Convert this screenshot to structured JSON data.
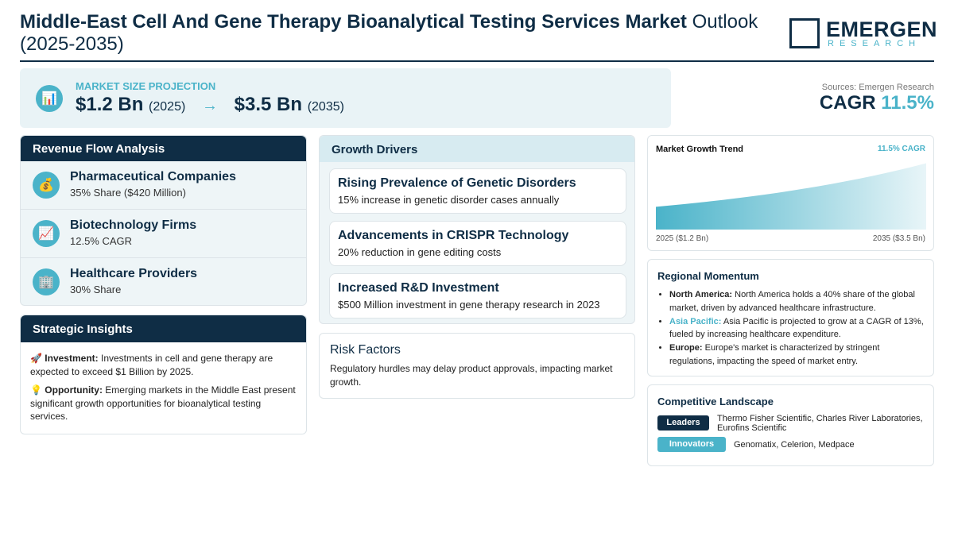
{
  "header": {
    "title_bold": "Middle-East Cell And Gene Therapy Bioanalytical Testing Services Market",
    "title_rest": " Outlook (2025-2035)",
    "logo_main": "EMERGEN",
    "logo_sub": "RESEARCH"
  },
  "projection": {
    "icon": "bar-chart-icon",
    "label": "MARKET SIZE PROJECTION",
    "start_value": "$1.2 Bn",
    "start_year": "(2025)",
    "arrow": "→",
    "end_value": "$3.5 Bn",
    "end_year": "(2035)"
  },
  "summary": {
    "source": "Sources: Emergen Research",
    "cagr_label": "CAGR",
    "cagr_value": "11.5%"
  },
  "revenue": {
    "title": "Revenue Flow Analysis",
    "items": [
      {
        "icon": "money-bag-icon",
        "glyph": "💰",
        "name": "Pharmaceutical Companies",
        "detail": "35% Share ($420 Million)"
      },
      {
        "icon": "trend-chart-icon",
        "glyph": "📈",
        "name": "Biotechnology Firms",
        "detail": "12.5% CAGR"
      },
      {
        "icon": "hospital-icon",
        "glyph": "🏢",
        "name": "Healthcare Providers",
        "detail": "30% Share"
      }
    ]
  },
  "strategic": {
    "title": "Strategic Insights",
    "items": [
      {
        "glyph": "🚀",
        "label": "Investment:",
        "text": " Investments in cell and gene therapy are expected to exceed $1 Billion by 2025."
      },
      {
        "glyph": "💡",
        "label": "Opportunity:",
        "text": " Emerging markets in the Middle East present significant growth opportunities for bioanalytical testing services."
      }
    ]
  },
  "growth": {
    "title": "Growth Drivers",
    "items": [
      {
        "title": "Rising Prevalence of Genetic Disorders",
        "detail": "15% increase in genetic disorder cases annually"
      },
      {
        "title": "Advancements in CRISPR Technology",
        "detail": "20% reduction in gene editing costs"
      },
      {
        "title": "Increased R&D Investment",
        "detail": "$500 Million investment in gene therapy research in 2023"
      }
    ]
  },
  "risk": {
    "title": "Risk Factors",
    "text": "Regulatory hurdles may delay product approvals, impacting market growth."
  },
  "trend": {
    "title": "Market Growth Trend",
    "cagr": "11.5% CAGR",
    "start_label": "2025 ($1.2 Bn)",
    "end_label": "2035 ($3.5 Bn)",
    "colors": {
      "fill_start": "#4ab3c9",
      "fill_end": "#e8f5f8"
    }
  },
  "chart_data": {
    "type": "area",
    "x": [
      2025,
      2035
    ],
    "values": [
      1.2,
      3.5
    ],
    "title": "Market Growth Trend",
    "xlabel": "",
    "ylabel": ""
  },
  "regional": {
    "title": "Regional Momentum",
    "items": [
      {
        "region": "North America:",
        "text": " North America holds a 40% share of the global market, driven by advanced healthcare infrastructure.",
        "accent": false
      },
      {
        "region": "Asia Pacific:",
        "text": " Asia Pacific is projected to grow at a CAGR of 13%, fueled by increasing healthcare expenditure.",
        "accent": true
      },
      {
        "region": "Europe:",
        "text": " Europe's market is characterized by stringent regulations, impacting the speed of market entry.",
        "accent": false
      }
    ]
  },
  "competitive": {
    "title": "Competitive Landscape",
    "leaders_label": "Leaders",
    "leaders": "Thermo Fisher Scientific, Charles River Laboratories, Eurofins Scientific",
    "innovators_label": "Innovators",
    "innovators": "Genomatix, Celerion, Medpace"
  },
  "colors": {
    "navy": "#0f2d45",
    "accent": "#4ab3c9",
    "panel_bg": "#eef5f7"
  }
}
